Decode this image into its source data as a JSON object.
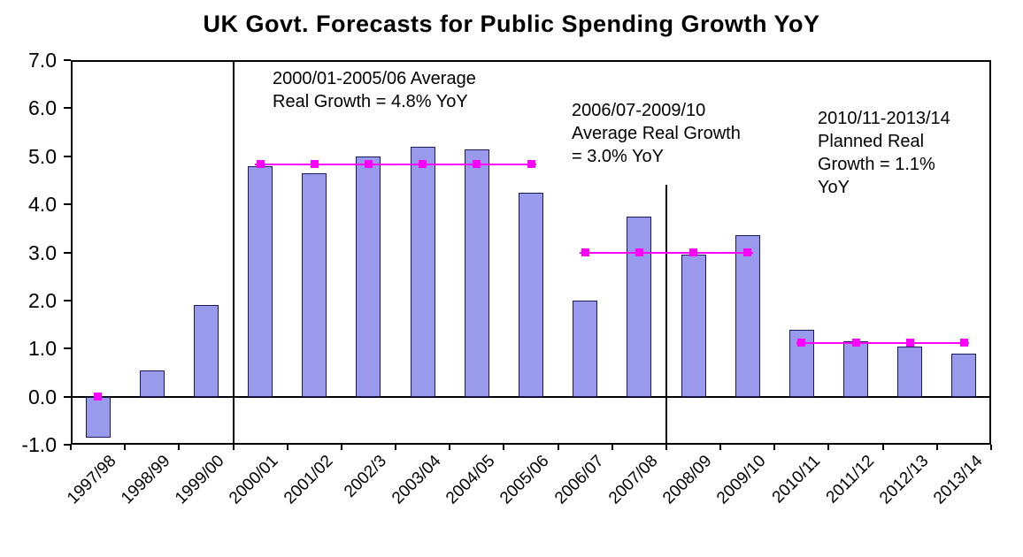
{
  "chart_data": {
    "type": "bar",
    "title": "UK Govt. Forecasts for Public Spending Growth YoY",
    "unit_label": "%",
    "categories": [
      "1997/98",
      "1998/99",
      "1999/00",
      "2000/01",
      "2001/02",
      "2002/3",
      "2003/04",
      "2004/05",
      "2005/06",
      "2006/07",
      "2007/08",
      "2008/09",
      "2009/10",
      "2010/11",
      "2011/12",
      "2012/13",
      "2013/14"
    ],
    "values": [
      -0.85,
      0.55,
      1.9,
      4.8,
      4.65,
      5.0,
      5.2,
      5.15,
      4.25,
      2.0,
      3.75,
      2.95,
      3.35,
      1.4,
      1.15,
      1.05,
      0.9
    ],
    "ylim": [
      -1.0,
      7.0
    ],
    "ytick_step": 1.0,
    "ytick_labels": [
      "7.0",
      "6.0",
      "5.0",
      "4.0",
      "3.0",
      "2.0",
      "1.0",
      "0.0",
      "-1.0"
    ],
    "grid": false,
    "legend": "none",
    "bar_color": "#9a9aec",
    "bar_border_color": "#1a1a5e",
    "line_color": "#ff00ff",
    "average_lines": [
      {
        "value": 4.83,
        "from_index": 3,
        "to_index": 8,
        "label_lines": [
          "2000/01-2005/06 Average",
          "Real Growth = 4.8% YoY"
        ]
      },
      {
        "value": 3.0,
        "from_index": 9,
        "to_index": 12,
        "label_lines": [
          "2006/07-2009/10",
          "Average Real Growth",
          "= 3.0% YoY"
        ]
      },
      {
        "value": 1.12,
        "from_index": 13,
        "to_index": 16,
        "label_lines": [
          "2010/11-2013/14",
          "Planned Real",
          "Growth = 1.1%",
          "YoY"
        ]
      }
    ],
    "extra_markers": [
      {
        "index": 0,
        "value": 0.0
      }
    ],
    "separator_lines": [
      {
        "boundary_index": 3,
        "from_value": 7.0,
        "to_value": -1.0
      },
      {
        "boundary_index": 11,
        "from_value": 4.4,
        "to_value": -1.0
      }
    ]
  }
}
